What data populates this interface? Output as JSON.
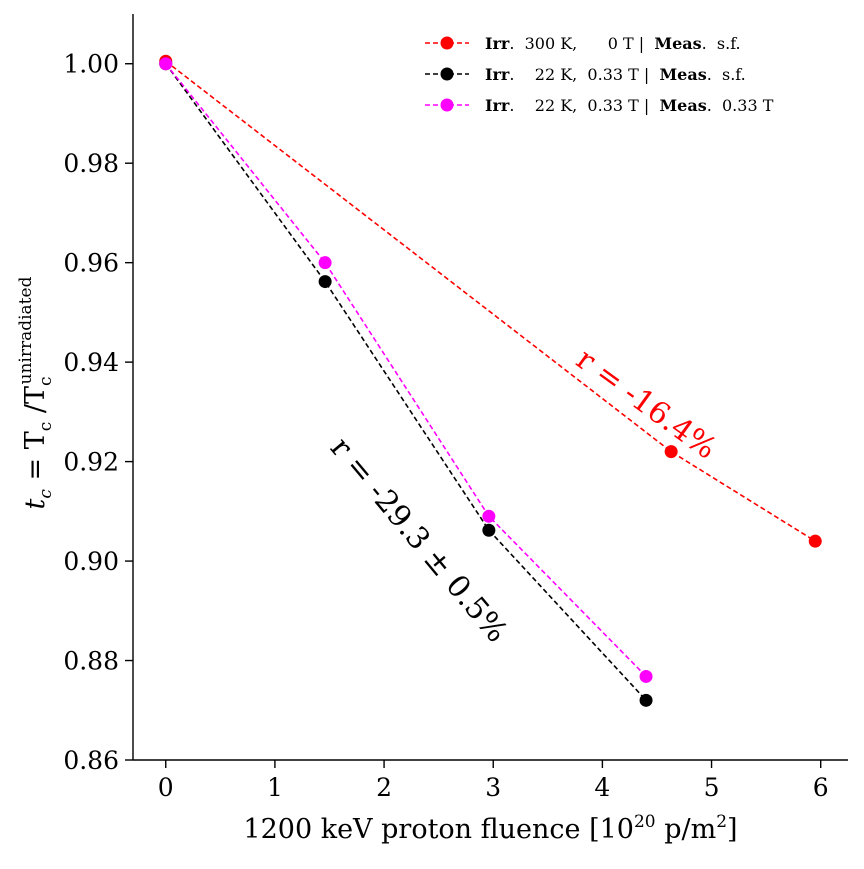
{
  "chart_data": {
    "type": "line",
    "title": "",
    "xlabel": "1200 keV proton fluence [10^20 p/m^2]",
    "xlabel_parts": {
      "main": "1200 keV proton fluence [10",
      "exp": "20",
      "unit": " p/m",
      "unit_exp": "2",
      "close": "]"
    },
    "ylabel": "t_c = T_c / T_c^unirradiated",
    "ylabel_parts": {
      "t": "t",
      "t_sub": "c",
      "eq": " = T",
      "t2_sub": "c",
      "slash": " /T",
      "t3_sub": "c",
      "t3_sup": "unirradiated"
    },
    "xlim": [
      -0.3,
      6.25
    ],
    "ylim": [
      0.86,
      1.01
    ],
    "xticks": [
      0,
      1,
      2,
      3,
      4,
      5,
      6
    ],
    "xtick_labels": [
      "0",
      "1",
      "2",
      "3",
      "4",
      "5",
      "6"
    ],
    "yticks": [
      0.86,
      0.88,
      0.9,
      0.92,
      0.94,
      0.96,
      0.98,
      1.0
    ],
    "ytick_labels": [
      "0.86",
      "0.88",
      "0.90",
      "0.92",
      "0.94",
      "0.96",
      "0.98",
      "1.00"
    ],
    "grid": false,
    "legend_position": "top-right",
    "series": [
      {
        "name": "Irr. 300 K, 0 T | Meas. s.f.",
        "color": "#ff0000",
        "x": [
          0,
          4.63,
          5.95
        ],
        "y": [
          1.0005,
          0.922,
          0.904
        ],
        "legend": {
          "b1": "Irr",
          "t1": ".  300 K,      0 T |  ",
          "b2": "Meas",
          "t2": ".  s.f."
        }
      },
      {
        "name": "Irr. 22 K, 0.33 T | Meas. s.f.",
        "color": "#000000",
        "x": [
          0,
          1.46,
          2.96,
          4.4
        ],
        "y": [
          1.0,
          0.9562,
          0.9062,
          0.872
        ],
        "legend": {
          "b1": "Irr",
          "t1": ".    22 K,  0.33 T |  ",
          "b2": "Meas",
          "t2": ".  s.f."
        }
      },
      {
        "name": "Irr. 22 K, 0.33 T | Meas. 0.33 T",
        "color": "#ff00ff",
        "x": [
          0,
          1.46,
          2.96,
          4.4
        ],
        "y": [
          1.0,
          0.96,
          0.909,
          0.8768
        ],
        "legend": {
          "b1": "Irr",
          "t1": ".    22 K,  0.33 T |  ",
          "b2": "Meas",
          "t2": ".  0.33 T"
        }
      }
    ],
    "annotations": [
      {
        "text": "r = -16.4%",
        "color": "#ff0000",
        "x": 4.35,
        "y": 0.93,
        "rotation": 36
      },
      {
        "text": "r = -29.3 ± 0.5%",
        "color": "#000000",
        "x": 2.25,
        "y": 0.903,
        "rotation": 50
      }
    ]
  }
}
